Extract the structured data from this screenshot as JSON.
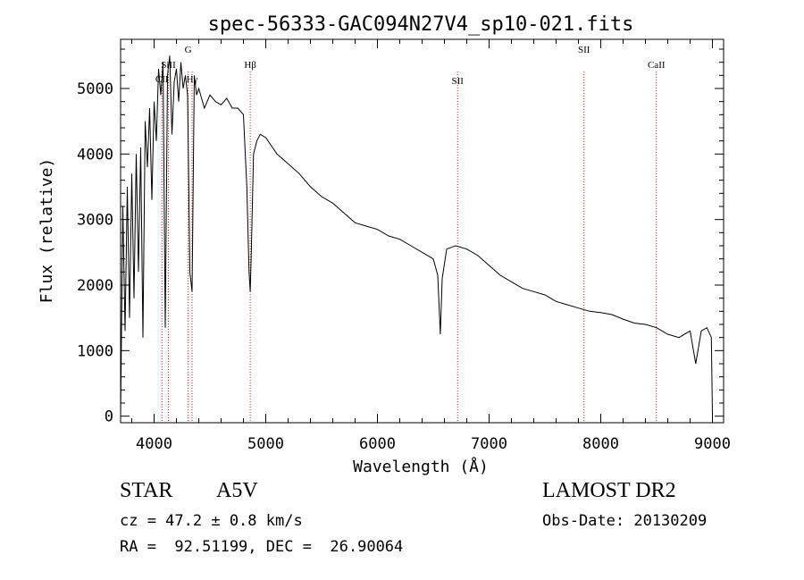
{
  "chart_data": {
    "type": "line",
    "title": "spec-56333-GAC094N27V4_sp10-021.fits",
    "xlabel": "Wavelength (Å)",
    "ylabel": "Flux (relative)",
    "xlim": [
      3700,
      9100
    ],
    "ylim": [
      -100,
      5750
    ],
    "xticks": [
      4000,
      5000,
      6000,
      7000,
      8000,
      9000
    ],
    "yticks": [
      0,
      1000,
      2000,
      3000,
      4000,
      5000
    ],
    "grid": false,
    "line_color": "#000000",
    "marker_color": "#cc2200",
    "x": [
      3700,
      3720,
      3740,
      3760,
      3780,
      3800,
      3820,
      3840,
      3860,
      3880,
      3900,
      3920,
      3940,
      3960,
      3980,
      4000,
      4020,
      4040,
      4060,
      4080,
      4100,
      4120,
      4140,
      4160,
      4180,
      4200,
      4220,
      4240,
      4260,
      4280,
      4300,
      4320,
      4340,
      4360,
      4380,
      4400,
      4450,
      4500,
      4550,
      4600,
      4650,
      4700,
      4750,
      4800,
      4830,
      4850,
      4861,
      4870,
      4890,
      4920,
      4950,
      5000,
      5100,
      5200,
      5300,
      5400,
      5500,
      5600,
      5700,
      5800,
      5900,
      6000,
      6100,
      6200,
      6300,
      6400,
      6500,
      6540,
      6563,
      6580,
      6620,
      6700,
      6800,
      6900,
      7000,
      7100,
      7200,
      7300,
      7400,
      7500,
      7600,
      7700,
      7800,
      7900,
      8000,
      8100,
      8200,
      8300,
      8400,
      8500,
      8600,
      8700,
      8800,
      8850,
      8900,
      8950,
      8990,
      9000
    ],
    "y": [
      0,
      3200,
      1300,
      3500,
      1500,
      3700,
      1800,
      4000,
      2200,
      4100,
      1200,
      4500,
      3800,
      4700,
      3300,
      4800,
      4200,
      5300,
      4900,
      5400,
      1350,
      5200,
      5500,
      4300,
      5100,
      5300,
      4800,
      5400,
      5000,
      5200,
      4900,
      2200,
      1900,
      5200,
      4900,
      5000,
      4700,
      4900,
      4800,
      4750,
      4850,
      4700,
      4700,
      4600,
      3500,
      2200,
      1900,
      2500,
      4000,
      4200,
      4300,
      4250,
      4000,
      3850,
      3700,
      3500,
      3350,
      3250,
      3100,
      2950,
      2900,
      2850,
      2750,
      2700,
      2600,
      2500,
      2400,
      2150,
      1250,
      2100,
      2550,
      2600,
      2550,
      2450,
      2300,
      2150,
      2050,
      1950,
      1900,
      1850,
      1750,
      1700,
      1650,
      1600,
      1580,
      1550,
      1480,
      1420,
      1400,
      1350,
      1250,
      1200,
      1300,
      800,
      1300,
      1350,
      1200,
      0
    ],
    "line_markers": [
      {
        "label": "CII",
        "x": 4070
      },
      {
        "label": "SiII",
        "x": 4128
      },
      {
        "label": "G",
        "x": 4305
      },
      {
        "label": "Hγ",
        "x": 4340
      },
      {
        "label": "Hβ",
        "x": 4861
      },
      {
        "label": "SII",
        "x": 6718
      },
      {
        "label": "SII",
        "x": 7850
      },
      {
        "label": "CaII",
        "x": 8498
      }
    ]
  },
  "info": {
    "class": "STAR",
    "subclass": "A5V",
    "survey": "LAMOST DR2",
    "redshift": "cz = 47.2 ± 0.8 km/s",
    "obs_date": "Obs-Date: 20130209",
    "coords": "RA =  92.51199, DEC =  26.90064"
  }
}
